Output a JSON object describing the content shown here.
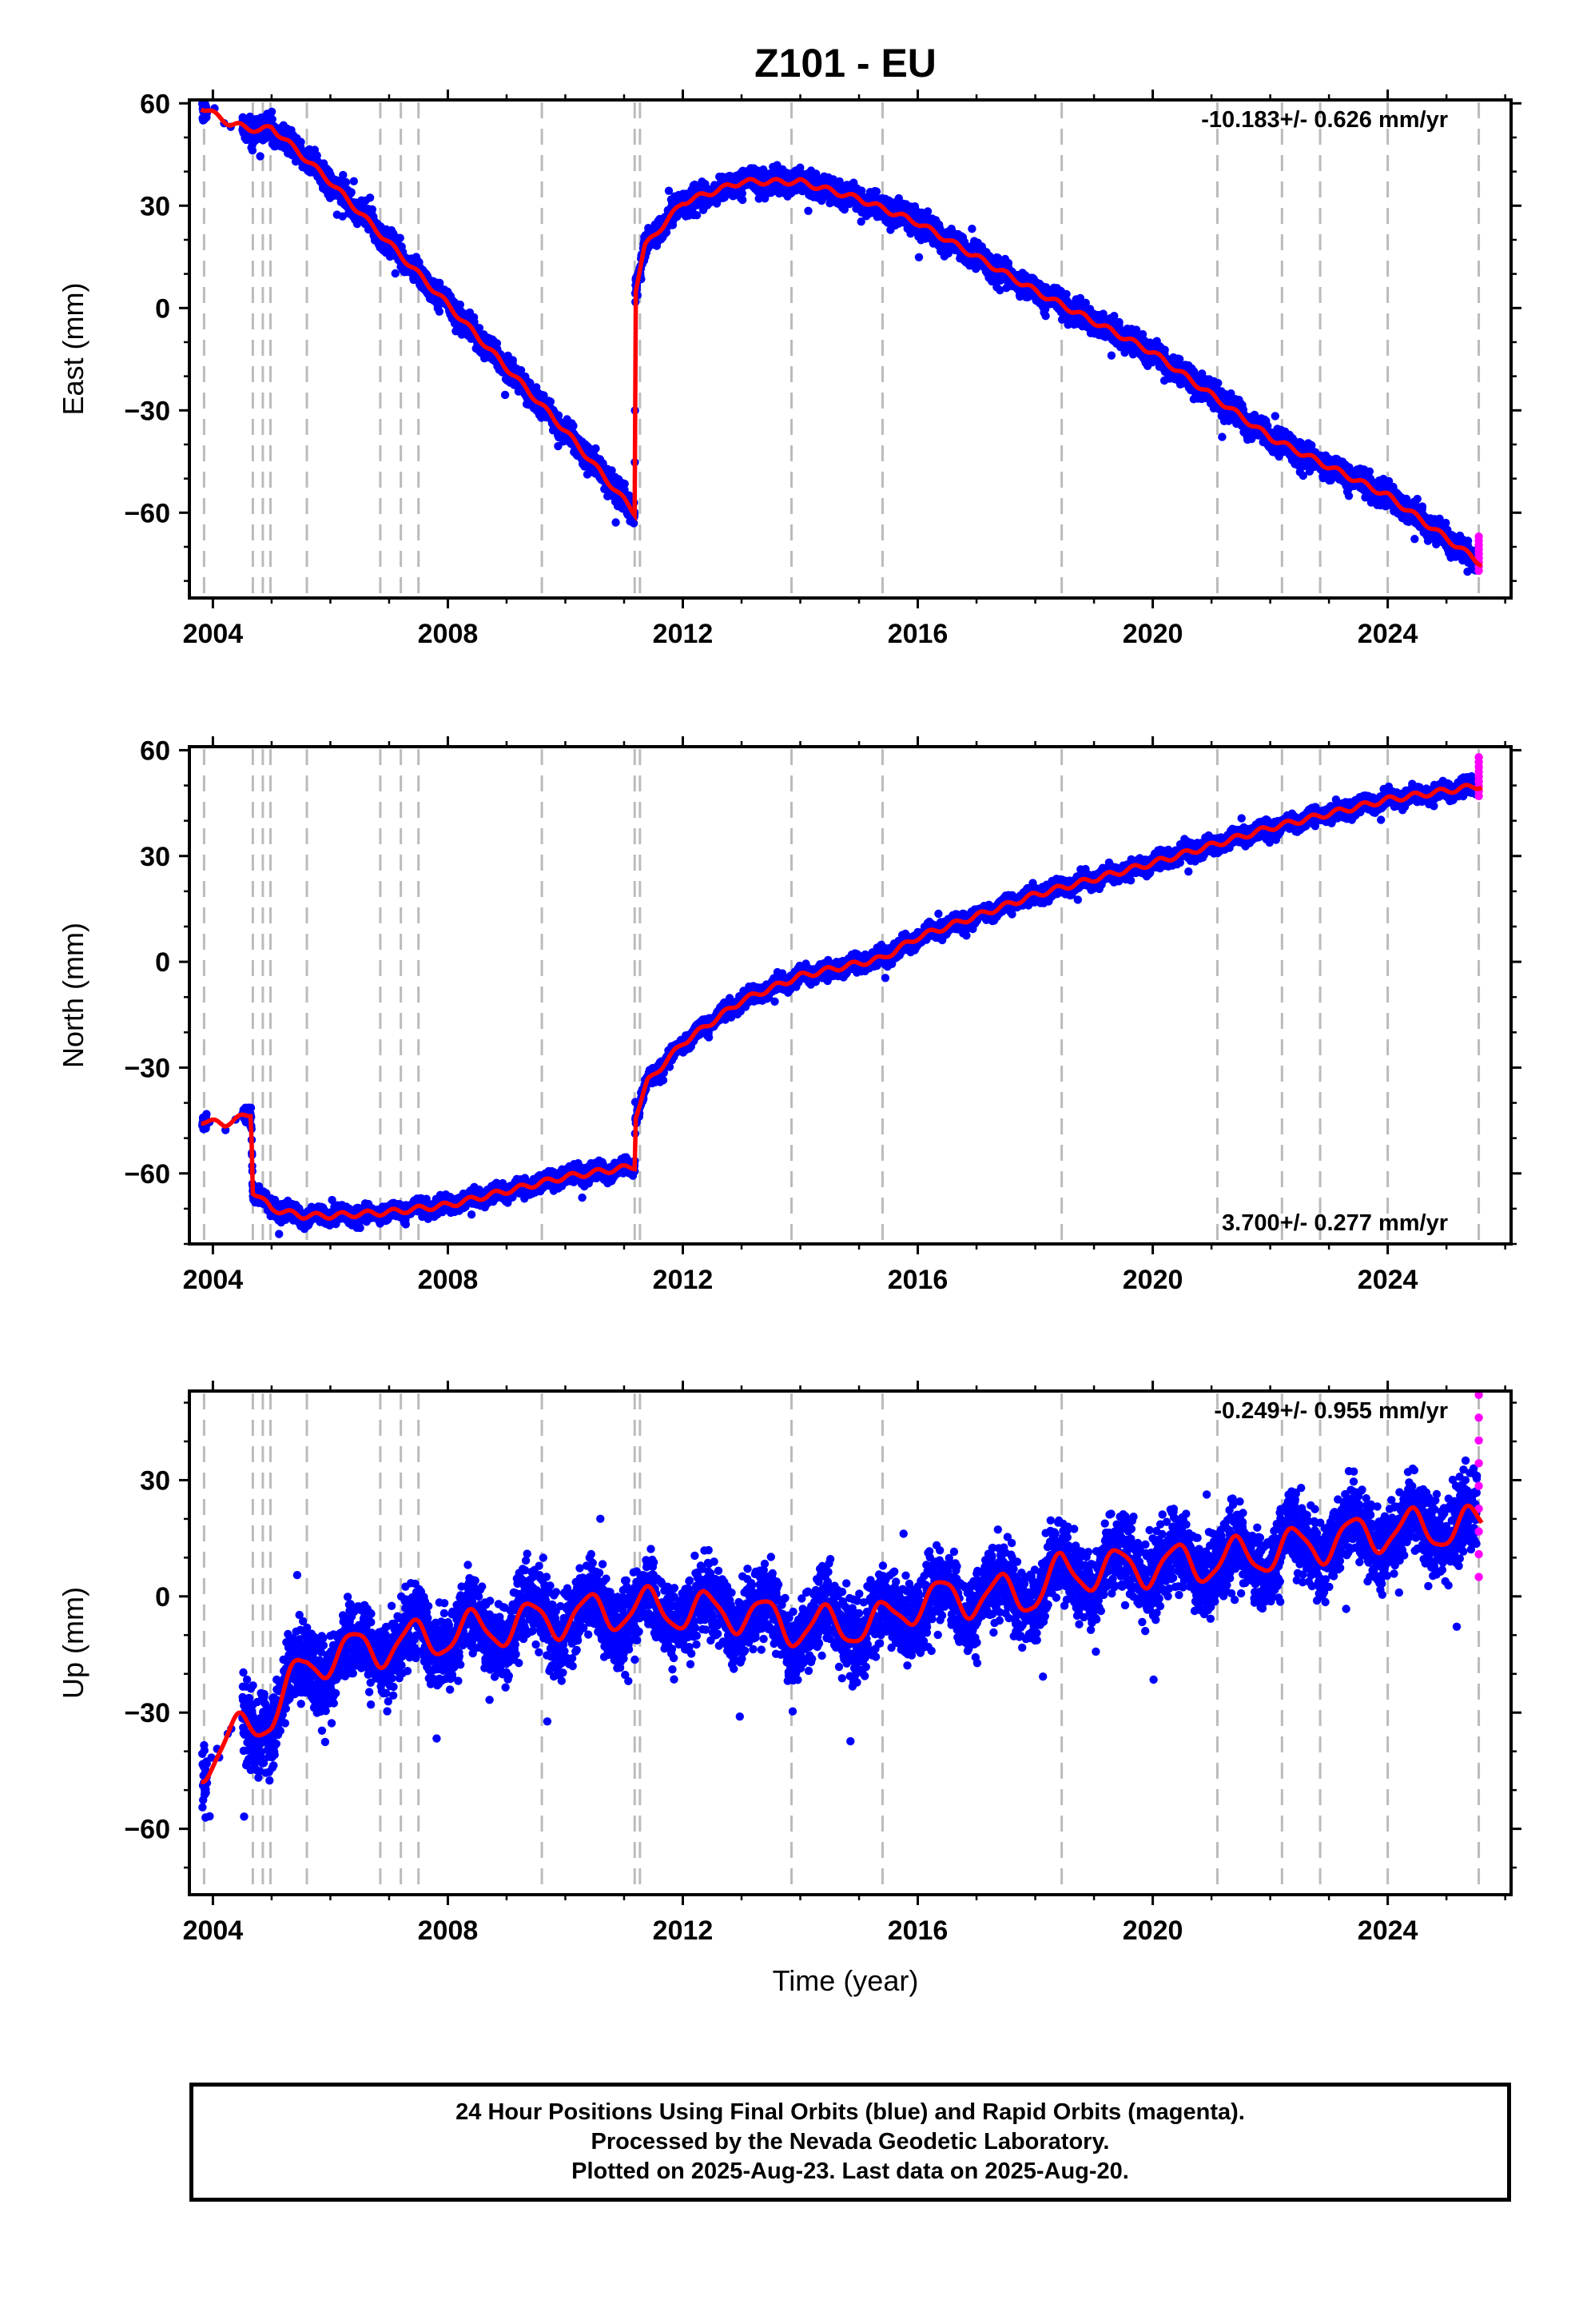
{
  "title": "Z101 - EU",
  "xlabel": "Time (year)",
  "colors": {
    "final": "#0000ff",
    "rapid": "#ff00ff",
    "model": "#ff0000",
    "events": "#bbbbbb",
    "axes": "#000000"
  },
  "footer": {
    "line1": "24 Hour Positions Using Final Orbits (blue) and Rapid Orbits (magenta).",
    "line2": "Processed by the Nevada Geodetic Laboratory.",
    "line3": "Plotted on 2025-Aug-23. Last data on 2025-Aug-20."
  },
  "chart_data": {
    "type": "scatter",
    "x_ticks": [
      2004,
      2008,
      2012,
      2016,
      2020,
      2024
    ],
    "xlim": [
      2003.6,
      2026.1
    ],
    "event_lines": [
      2003.85,
      2004.68,
      2004.85,
      2004.98,
      2005.6,
      2006.85,
      2007.2,
      2007.5,
      2009.6,
      2011.18,
      2011.27,
      2013.85,
      2015.4,
      2018.45,
      2021.1,
      2022.2,
      2022.85,
      2024.0,
      2025.55
    ],
    "panels": [
      {
        "name": "East",
        "ylabel": "East (mm)",
        "ylim": [
          -85,
          61
        ],
        "y_ticks": [
          60,
          30,
          0,
          -30,
          -60
        ],
        "rate_label": "-10.183+/- 0.626 mm/yr",
        "rate_position": "top-right",
        "scatter": 2.5,
        "seasonal": 0,
        "trend": [
          [
            2003.8,
            59
          ],
          [
            2004.3,
            54
          ],
          [
            2004.8,
            52
          ],
          [
            2005.0,
            53
          ],
          [
            2006.0,
            37
          ],
          [
            2008.0,
            1
          ],
          [
            2010.0,
            -36
          ],
          [
            2011.18,
            -60
          ],
          [
            2011.19,
            5
          ],
          [
            2011.35,
            18
          ],
          [
            2012.0,
            31
          ],
          [
            2013.0,
            37
          ],
          [
            2014.0,
            37
          ],
          [
            2015.0,
            32
          ],
          [
            2016.0,
            25
          ],
          [
            2018.0,
            5
          ],
          [
            2020.0,
            -13
          ],
          [
            2022.0,
            -38
          ],
          [
            2024.0,
            -55
          ],
          [
            2025.6,
            -75
          ]
        ],
        "rapid_range": [
          -77,
          -67
        ]
      },
      {
        "name": "North",
        "ylabel": "North (mm)",
        "ylim": [
          -80,
          61
        ],
        "y_ticks": [
          60,
          30,
          0,
          -30,
          -60
        ],
        "rate_label": "3.700+/- 0.277 mm/yr",
        "rate_position": "bottom-right",
        "scatter": 1.6,
        "seasonal": 0,
        "trend": [
          [
            2003.8,
            -45
          ],
          [
            2004.2,
            -46
          ],
          [
            2004.65,
            -43
          ],
          [
            2004.68,
            -65
          ],
          [
            2005.0,
            -70
          ],
          [
            2005.5,
            -72
          ],
          [
            2006.0,
            -72
          ],
          [
            2007.0,
            -71
          ],
          [
            2008.0,
            -69
          ],
          [
            2009.0,
            -65
          ],
          [
            2010.0,
            -61
          ],
          [
            2011.18,
            -58
          ],
          [
            2011.19,
            -44
          ],
          [
            2011.4,
            -34
          ],
          [
            2012.0,
            -23
          ],
          [
            2013.0,
            -11
          ],
          [
            2014.0,
            -4
          ],
          [
            2015.4,
            1
          ],
          [
            2016.0,
            7
          ],
          [
            2018.0,
            19
          ],
          [
            2020.0,
            28
          ],
          [
            2022.0,
            38
          ],
          [
            2024.0,
            46
          ],
          [
            2025.6,
            50
          ]
        ],
        "rapid_range": [
          47,
          58
        ]
      },
      {
        "name": "Up",
        "ylabel": "Up (mm)",
        "ylim": [
          -77,
          53
        ],
        "y_ticks": [
          30,
          0,
          -30,
          -60
        ],
        "rate_label": "-0.249+/- 0.955 mm/yr",
        "rate_position": "top-right",
        "scatter": 7,
        "seasonal": 5,
        "trend": [
          [
            2003.8,
            -43
          ],
          [
            2004.5,
            -35
          ],
          [
            2005.0,
            -30
          ],
          [
            2005.6,
            -18
          ],
          [
            2006.0,
            -15
          ],
          [
            2008.0,
            -10
          ],
          [
            2009.6,
            -6
          ],
          [
            2011.2,
            -3
          ],
          [
            2012.5,
            -4
          ],
          [
            2013.0,
            -4
          ],
          [
            2014.0,
            -8
          ],
          [
            2015.4,
            -7
          ],
          [
            2016.0,
            -1
          ],
          [
            2018.0,
            1
          ],
          [
            2018.45,
            6
          ],
          [
            2020.0,
            8
          ],
          [
            2021.1,
            9
          ],
          [
            2022.2,
            12
          ],
          [
            2024.0,
            17
          ],
          [
            2025.6,
            18
          ]
        ],
        "rapid_range": [
          5,
          52
        ]
      }
    ]
  }
}
